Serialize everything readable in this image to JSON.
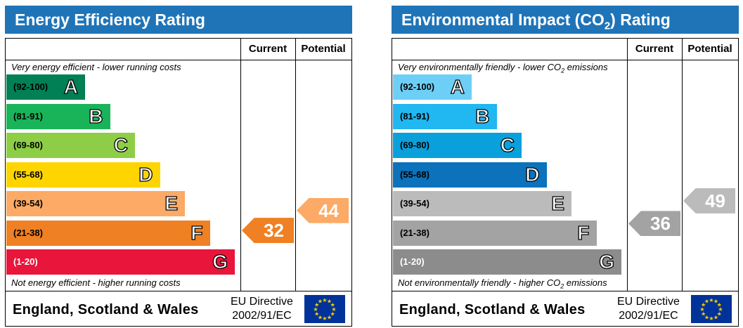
{
  "chart_data": [
    {
      "type": "bar",
      "title": "Energy Efficiency Rating",
      "column_headers": [
        "Current",
        "Potential"
      ],
      "top_note": "Very energy efficient - lower running costs",
      "bottom_note": "Not energy efficient - higher running costs",
      "categories": [
        "A",
        "B",
        "C",
        "D",
        "E",
        "F",
        "G"
      ],
      "ranges": [
        "(92-100)",
        "(81-91)",
        "(69-80)",
        "(55-68)",
        "(39-54)",
        "(21-38)",
        "(1-20)"
      ],
      "band_colors": [
        "#008054",
        "#19b459",
        "#8dce46",
        "#ffd500",
        "#fcaa65",
        "#ef8023",
        "#e9153b"
      ],
      "values": {
        "current": 32,
        "potential": 44
      },
      "value_colors": {
        "current": "#ef8023",
        "potential": "#fcaa65"
      },
      "footer_region": "England, Scotland & Wales",
      "footer_directive": [
        "EU Directive",
        "2002/91/EC"
      ]
    },
    {
      "type": "bar",
      "title": "Environmental Impact (CO2) Rating",
      "column_headers": [
        "Current",
        "Potential"
      ],
      "top_note": "Very environmentally friendly - lower CO2 emissions",
      "bottom_note": "Not environmentally friendly - higher CO2 emissions",
      "categories": [
        "A",
        "B",
        "C",
        "D",
        "E",
        "F",
        "G"
      ],
      "ranges": [
        "(92-100)",
        "(81-91)",
        "(69-80)",
        "(55-68)",
        "(39-54)",
        "(21-38)",
        "(1-20)"
      ],
      "band_colors": [
        "#6ecff6",
        "#21b7f0",
        "#0aa0dc",
        "#0b72bb",
        "#bbbbbb",
        "#a3a3a3",
        "#8c8c8c"
      ],
      "values": {
        "current": 36,
        "potential": 49
      },
      "value_colors": {
        "current": "#a3a3a3",
        "potential": "#bbbbbb"
      },
      "footer_region": "England, Scotland & Wales",
      "footer_directive": [
        "EU Directive",
        "2002/91/EC"
      ]
    }
  ],
  "icons": {
    "eu_flag": "eu-flag-icon"
  }
}
